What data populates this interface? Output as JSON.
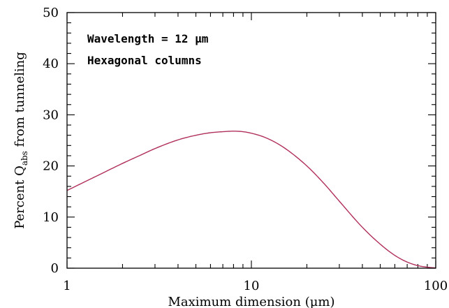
{
  "chart_data": {
    "type": "line",
    "title": "",
    "xlabel": "Maximum dimension (μm)",
    "ylabel_prefix": "Percent Q",
    "ylabel_subscript": "abs",
    "ylabel_suffix": " from tunneling",
    "x_scale": "log",
    "xlim": [
      1,
      100
    ],
    "ylim": [
      0,
      50
    ],
    "x_major_ticks": [
      1,
      10,
      100
    ],
    "x_tick_labels": [
      "1",
      "10",
      "100"
    ],
    "y_major_ticks": [
      0,
      10,
      20,
      30,
      40,
      50
    ],
    "y_tick_labels": [
      "0",
      "10",
      "20",
      "30",
      "40",
      "50"
    ],
    "annotations": [
      "Wavelength = 12 μm",
      "Hexagonal columns"
    ],
    "grid": false,
    "line_color": "#b0305a",
    "series": [
      {
        "x": [
          1,
          1.2,
          1.5,
          2,
          2.5,
          3,
          4,
          5,
          6,
          7,
          8,
          9,
          10,
          12,
          15,
          20,
          25,
          30,
          40,
          50,
          60,
          70,
          80,
          90,
          100
        ],
        "y": [
          15.2,
          16.6,
          18.3,
          20.5,
          22.1,
          23.4,
          25.1,
          26.0,
          26.5,
          26.7,
          26.8,
          26.7,
          26.4,
          25.5,
          23.6,
          20.0,
          16.4,
          13.1,
          8.0,
          4.7,
          2.5,
          1.2,
          0.5,
          0.2,
          0.05
        ]
      }
    ]
  }
}
